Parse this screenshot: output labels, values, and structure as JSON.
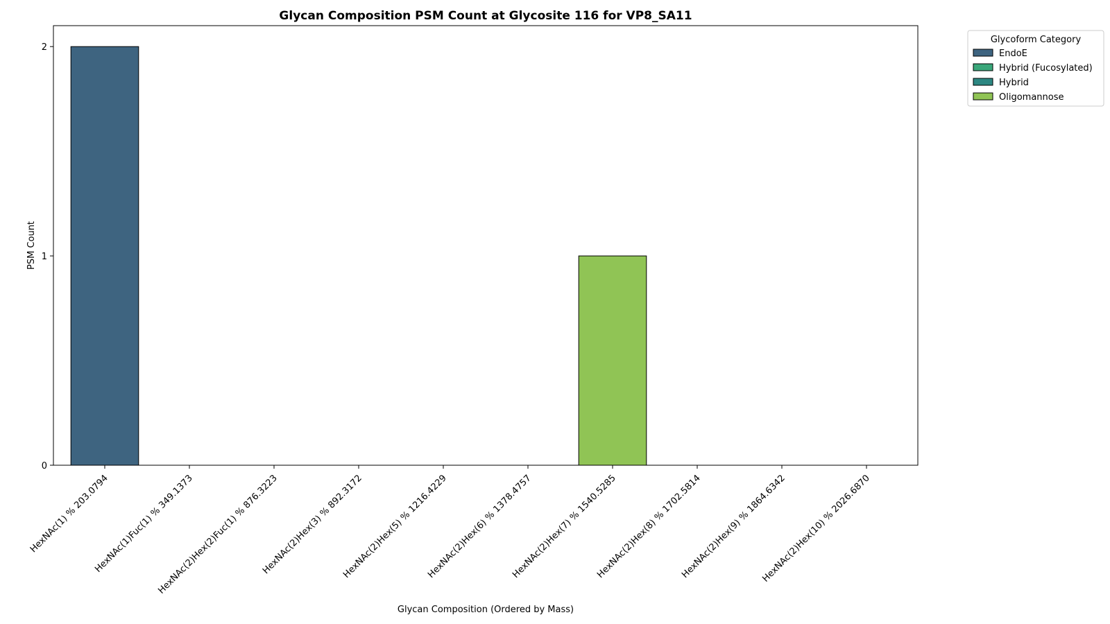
{
  "chart_data": {
    "type": "bar",
    "title": "Glycan Composition PSM Count at Glycosite 116 for VP8_SA11",
    "xlabel": "Glycan Composition (Ordered by Mass)",
    "ylabel": "PSM Count",
    "ylim": [
      0,
      2.1
    ],
    "yticks": [
      0,
      1,
      2
    ],
    "categories": [
      "HexNAc(1) % 203.0794",
      "HexNAc(1)Fuc(1) % 349.1373",
      "HexNAc(2)Hex(2)Fuc(1) % 876.3223",
      "HexNAc(2)Hex(3) % 892.3172",
      "HexNAc(2)Hex(5) % 1216.4229",
      "HexNAc(2)Hex(6) % 1378.4757",
      "HexNAc(2)Hex(7) % 1540.5285",
      "HexNAc(2)Hex(8) % 1702.5814",
      "HexNAc(2)Hex(9) % 1864.6342",
      "HexNAc(2)Hex(10) % 2026.6870"
    ],
    "values": [
      2,
      0,
      0,
      0,
      0,
      0,
      1,
      0,
      0,
      0
    ],
    "bar_categories": [
      "EndoE",
      "Hybrid (Fucosylated)",
      "Hybrid",
      "Hybrid",
      "Oligomannose",
      "Oligomannose",
      "Oligomannose",
      "Oligomannose",
      "Oligomannose",
      "Oligomannose"
    ],
    "legend": {
      "title": "Glycoform Category",
      "position": "outside upper right",
      "entries": [
        {
          "label": "EndoE",
          "color": "#3e6480"
        },
        {
          "label": "Hybrid (Fucosylated)",
          "color": "#3aa77a"
        },
        {
          "label": "Hybrid",
          "color": "#2d8782"
        },
        {
          "label": "Oligomannose",
          "color": "#90c455"
        }
      ]
    },
    "grid": false
  }
}
